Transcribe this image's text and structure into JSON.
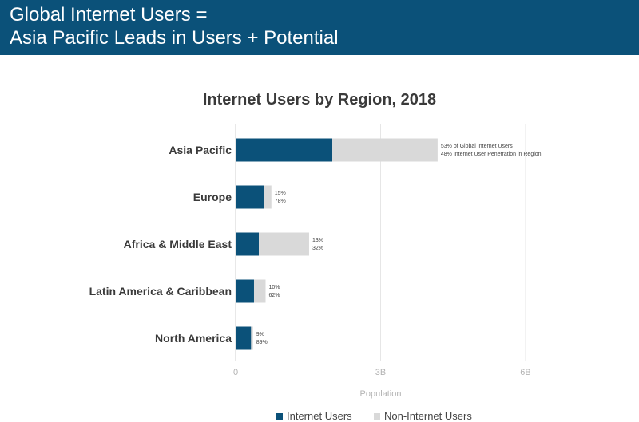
{
  "header": {
    "line1": "Global Internet Users =",
    "line2": "Asia Pacific Leads in Users + Potential"
  },
  "colors": {
    "header_bg": "#0b5179",
    "internet_users": "#0b5179",
    "non_internet_users": "#d9d9d9",
    "gridline": "#e6e6e6"
  },
  "chart_data": {
    "type": "bar",
    "orientation": "horizontal",
    "stacked": true,
    "title": "Internet Users by Region, 2018",
    "xlabel": "Population",
    "xlim": [
      0,
      6
    ],
    "xticks": [
      0,
      3,
      6
    ],
    "xtick_labels": [
      "0",
      "3B",
      "6B"
    ],
    "grid": true,
    "legend_position": "bottom-center",
    "categories": [
      "Asia Pacific",
      "Europe",
      "Africa & Middle East",
      "Latin America & Caribbean",
      "North America"
    ],
    "series": [
      {
        "name": "Internet Users",
        "values": [
          2.0,
          0.58,
          0.48,
          0.38,
          0.32
        ]
      },
      {
        "name": "Non-Internet Users",
        "values": [
          2.18,
          0.16,
          1.04,
          0.24,
          0.04
        ]
      }
    ],
    "annotations": [
      [
        "53% of Global Internet Users",
        "48% Internet User Penetration in Region"
      ],
      [
        "15%",
        "78%"
      ],
      [
        "13%",
        "32%"
      ],
      [
        "10%",
        "62%"
      ],
      [
        "9%",
        "89%"
      ]
    ]
  }
}
